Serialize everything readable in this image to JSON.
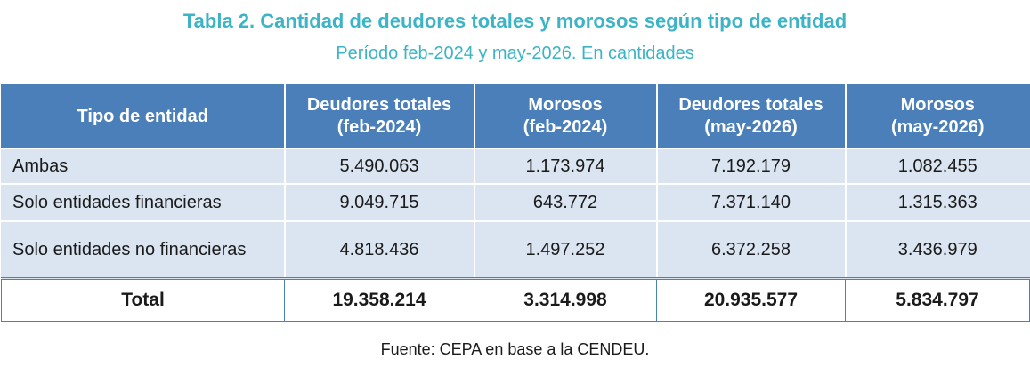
{
  "title": "Tabla 2. Cantidad de deudores totales y morosos según tipo de entidad",
  "subtitle": "Período feb-2024 y may-2026. En cantidades",
  "table": {
    "headers": [
      {
        "line1": "Tipo de entidad",
        "line2": ""
      },
      {
        "line1": "Deudores totales",
        "line2": "(feb-2024)"
      },
      {
        "line1": "Morosos",
        "line2": "(feb-2024)"
      },
      {
        "line1": "Deudores totales",
        "line2": "(may-2026)"
      },
      {
        "line1": "Morosos",
        "line2": "(may-2026)"
      }
    ],
    "rows": [
      {
        "label": "Ambas",
        "values": [
          "5.490.063",
          "1.173.974",
          "7.192.179",
          "1.082.455"
        ]
      },
      {
        "label": "Solo entidades financieras",
        "values": [
          "9.049.715",
          "643.772",
          "7.371.140",
          "1.315.363"
        ]
      },
      {
        "label": "Solo entidades no financieras",
        "values": [
          "4.818.436",
          "1.497.252",
          "6.372.258",
          "3.436.979"
        ]
      }
    ],
    "total": {
      "label": "Total",
      "values": [
        "19.358.214",
        "3.314.998",
        "20.935.577",
        "5.834.797"
      ]
    }
  },
  "source": "Fuente: CEPA en base a la CENDEU.",
  "colors": {
    "title": "#3cb4c6",
    "header_bg": "#4a7fb9",
    "row_bg": "#dbe5f2"
  }
}
